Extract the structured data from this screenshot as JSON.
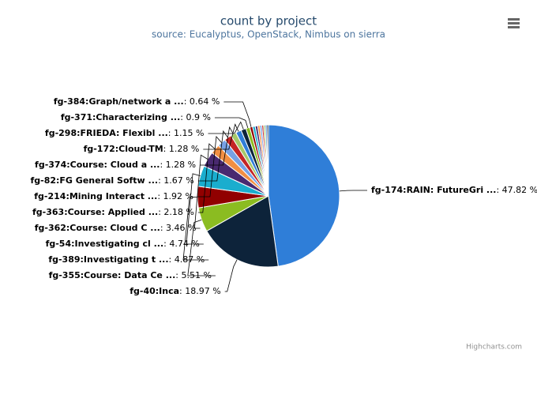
{
  "chart_data": {
    "type": "pie",
    "title": "count by project",
    "subtitle": "source: Eucalyptus, OpenStack, Nimbus on sierra",
    "credits": "Highcharts.com",
    "categories": [
      "fg-174:RAIN: FutureGri ...",
      "fg-40:Inca",
      "fg-355:Course: Data Ce ...",
      "fg-389:Investigating t ...",
      "fg-54:Investigating cl ...",
      "fg-362:Course: Cloud C ...",
      "fg-363:Course: Applied ...",
      "fg-214:Mining Interact ...",
      "fg-82:FG General Softw ...",
      "fg-374:Course: Cloud a ...",
      "fg-172:Cloud-TM",
      "fg-298:FRIEDA: Flexibl ...",
      "fg-371:Characterizing ...",
      "fg-384:Graph/network a ...",
      null,
      null,
      null,
      null,
      null,
      null,
      null,
      null
    ],
    "values": [
      47.82,
      18.97,
      5.51,
      4.87,
      4.74,
      3.46,
      2.18,
      1.92,
      1.67,
      1.28,
      1.28,
      1.15,
      0.9,
      0.64,
      0.6,
      0.55,
      0.5,
      0.45,
      0.4,
      0.4,
      0.36,
      0.35
    ],
    "value_labels": [
      ": 47.82 %",
      ": 18.97 %",
      ": 5.51 %",
      ": 4.87 %",
      ": 4.74 %",
      ": 3.46 %",
      ": 2.18 %",
      ": 1.92 %",
      ": 1.67 %",
      ": 1.28 %",
      ": 1.28 %",
      ": 1.15 %",
      ": 0.9 %",
      ": 0.64 %",
      null,
      null,
      null,
      null,
      null,
      null,
      null,
      null
    ],
    "colors": [
      "#2f7ed8",
      "#0d233a",
      "#8bbc21",
      "#910000",
      "#1aadce",
      "#492970",
      "#f28f43",
      "#77a1e5",
      "#c42525",
      "#a6c96a",
      "#2f7ed8",
      "#0d233a",
      "#8bbc21",
      "#910000",
      "#1aadce",
      "#492970",
      "#f28f43",
      "#77a1e5",
      "#c42525",
      "#a6c96a",
      "#2f7ed8",
      "#0d233a"
    ]
  }
}
